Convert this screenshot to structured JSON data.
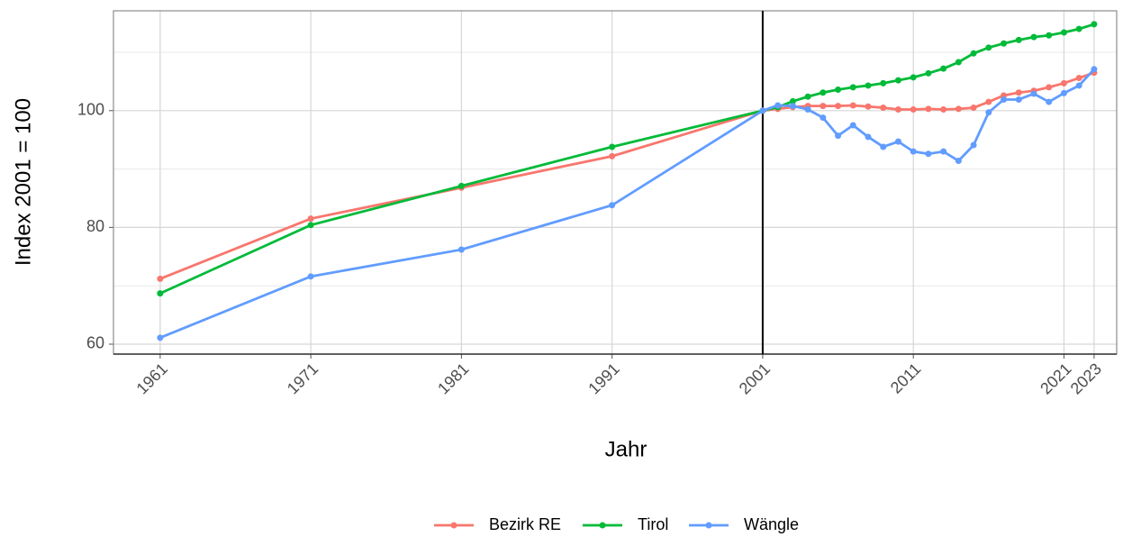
{
  "chart_data": {
    "type": "line",
    "xlabel": "Jahr",
    "ylabel": "Index 2001 = 100",
    "x": [
      1961,
      1971,
      1981,
      1991,
      2001,
      2002,
      2003,
      2004,
      2005,
      2006,
      2007,
      2008,
      2009,
      2010,
      2011,
      2012,
      2013,
      2014,
      2015,
      2016,
      2017,
      2018,
      2019,
      2020,
      2021,
      2022,
      2023
    ],
    "series": [
      {
        "name": "Bezirk RE",
        "color": "#F8766D",
        "values": [
          71.2,
          81.5,
          86.8,
          92.2,
          100,
          100.3,
          100.6,
          100.8,
          100.8,
          100.8,
          100.9,
          100.7,
          100.5,
          100.2,
          100.2,
          100.3,
          100.2,
          100.3,
          100.5,
          101.5,
          102.6,
          103.1,
          103.4,
          104.0,
          104.7,
          105.6,
          106.5
        ]
      },
      {
        "name": "Tirol",
        "color": "#00BA38",
        "values": [
          68.7,
          80.4,
          87.1,
          93.8,
          100,
          100.6,
          101.6,
          102.4,
          103.1,
          103.6,
          104.0,
          104.3,
          104.7,
          105.2,
          105.7,
          106.4,
          107.2,
          108.3,
          109.8,
          110.8,
          111.5,
          112.1,
          112.6,
          112.9,
          113.4,
          114.0,
          114.8
        ]
      },
      {
        "name": "Wängle",
        "color": "#619CFF",
        "values": [
          61.1,
          71.6,
          76.2,
          83.8,
          100,
          100.9,
          100.8,
          100.2,
          98.8,
          95.7,
          97.5,
          95.5,
          93.8,
          94.7,
          93.0,
          92.6,
          93.0,
          91.4,
          94.1,
          99.7,
          101.9,
          101.9,
          102.9,
          101.5,
          103.0,
          104.3,
          107.1
        ]
      }
    ],
    "xlim": [
      1957.9,
      2024.5
    ],
    "xticks": [
      1961,
      1971,
      1981,
      1991,
      2001,
      2011,
      2021,
      2023
    ],
    "ylim": [
      58.3,
      117.1
    ],
    "yticks": [
      60,
      80,
      100
    ],
    "yminorticks": [
      70,
      90,
      110
    ],
    "vline": 2001,
    "grid": true,
    "legend": "bottom"
  }
}
